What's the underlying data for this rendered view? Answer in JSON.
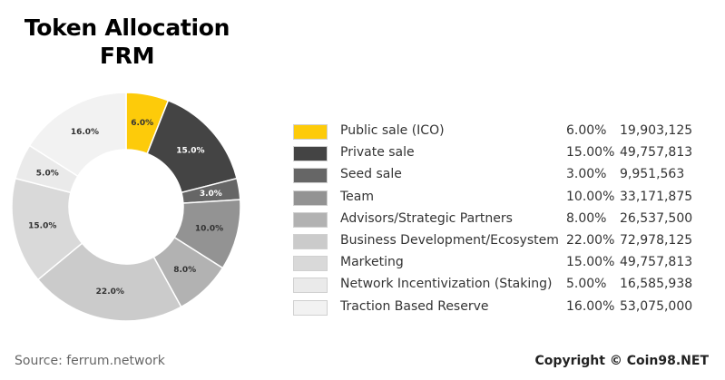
{
  "title_line1": "Token Allocation",
  "title_line2": "FRM",
  "source": "Source: ferrum.network",
  "copyright": "Copyright © Coin98.NET",
  "chart_data": {
    "type": "pie",
    "title": "Token Allocation FRM",
    "categories": [
      "Public sale (ICO)",
      "Private sale",
      "Seed sale",
      "Team",
      "Advisors/Strategic Partners",
      "Business Development/Ecosystem",
      "Marketing",
      "Network Incentivization (Staking)",
      "Traction Based Reserve"
    ],
    "values": [
      6.0,
      15.0,
      3.0,
      10.0,
      8.0,
      22.0,
      15.0,
      5.0,
      16.0
    ],
    "percent_labels": [
      "6.00%",
      "15.00%",
      "3.00%",
      "10.00%",
      "8.00%",
      "22.00%",
      "15.00%",
      "5.00%",
      "16.00%"
    ],
    "slice_labels": [
      "6.0%",
      "15.0%",
      "3.0%",
      "10.0%",
      "8.0%",
      "22.0%",
      "15.0%",
      "5.0%",
      "16.0%"
    ],
    "tokens": [
      "19,903,125",
      "49,757,813",
      "9,951,563",
      "33,171,875",
      "26,537,500",
      "72,978,125",
      "49,757,813",
      "16,585,938",
      "53,075,000"
    ],
    "colors": [
      "#fdcb0a",
      "#444444",
      "#666666",
      "#939393",
      "#b2b2b2",
      "#cbcbcb",
      "#d9d9d9",
      "#eaeaea",
      "#f2f2f2"
    ],
    "label_colors": [
      "#333333",
      "#ffffff",
      "#ffffff",
      "#333333",
      "#333333",
      "#333333",
      "#333333",
      "#333333",
      "#333333"
    ],
    "legend_placement": "right"
  }
}
